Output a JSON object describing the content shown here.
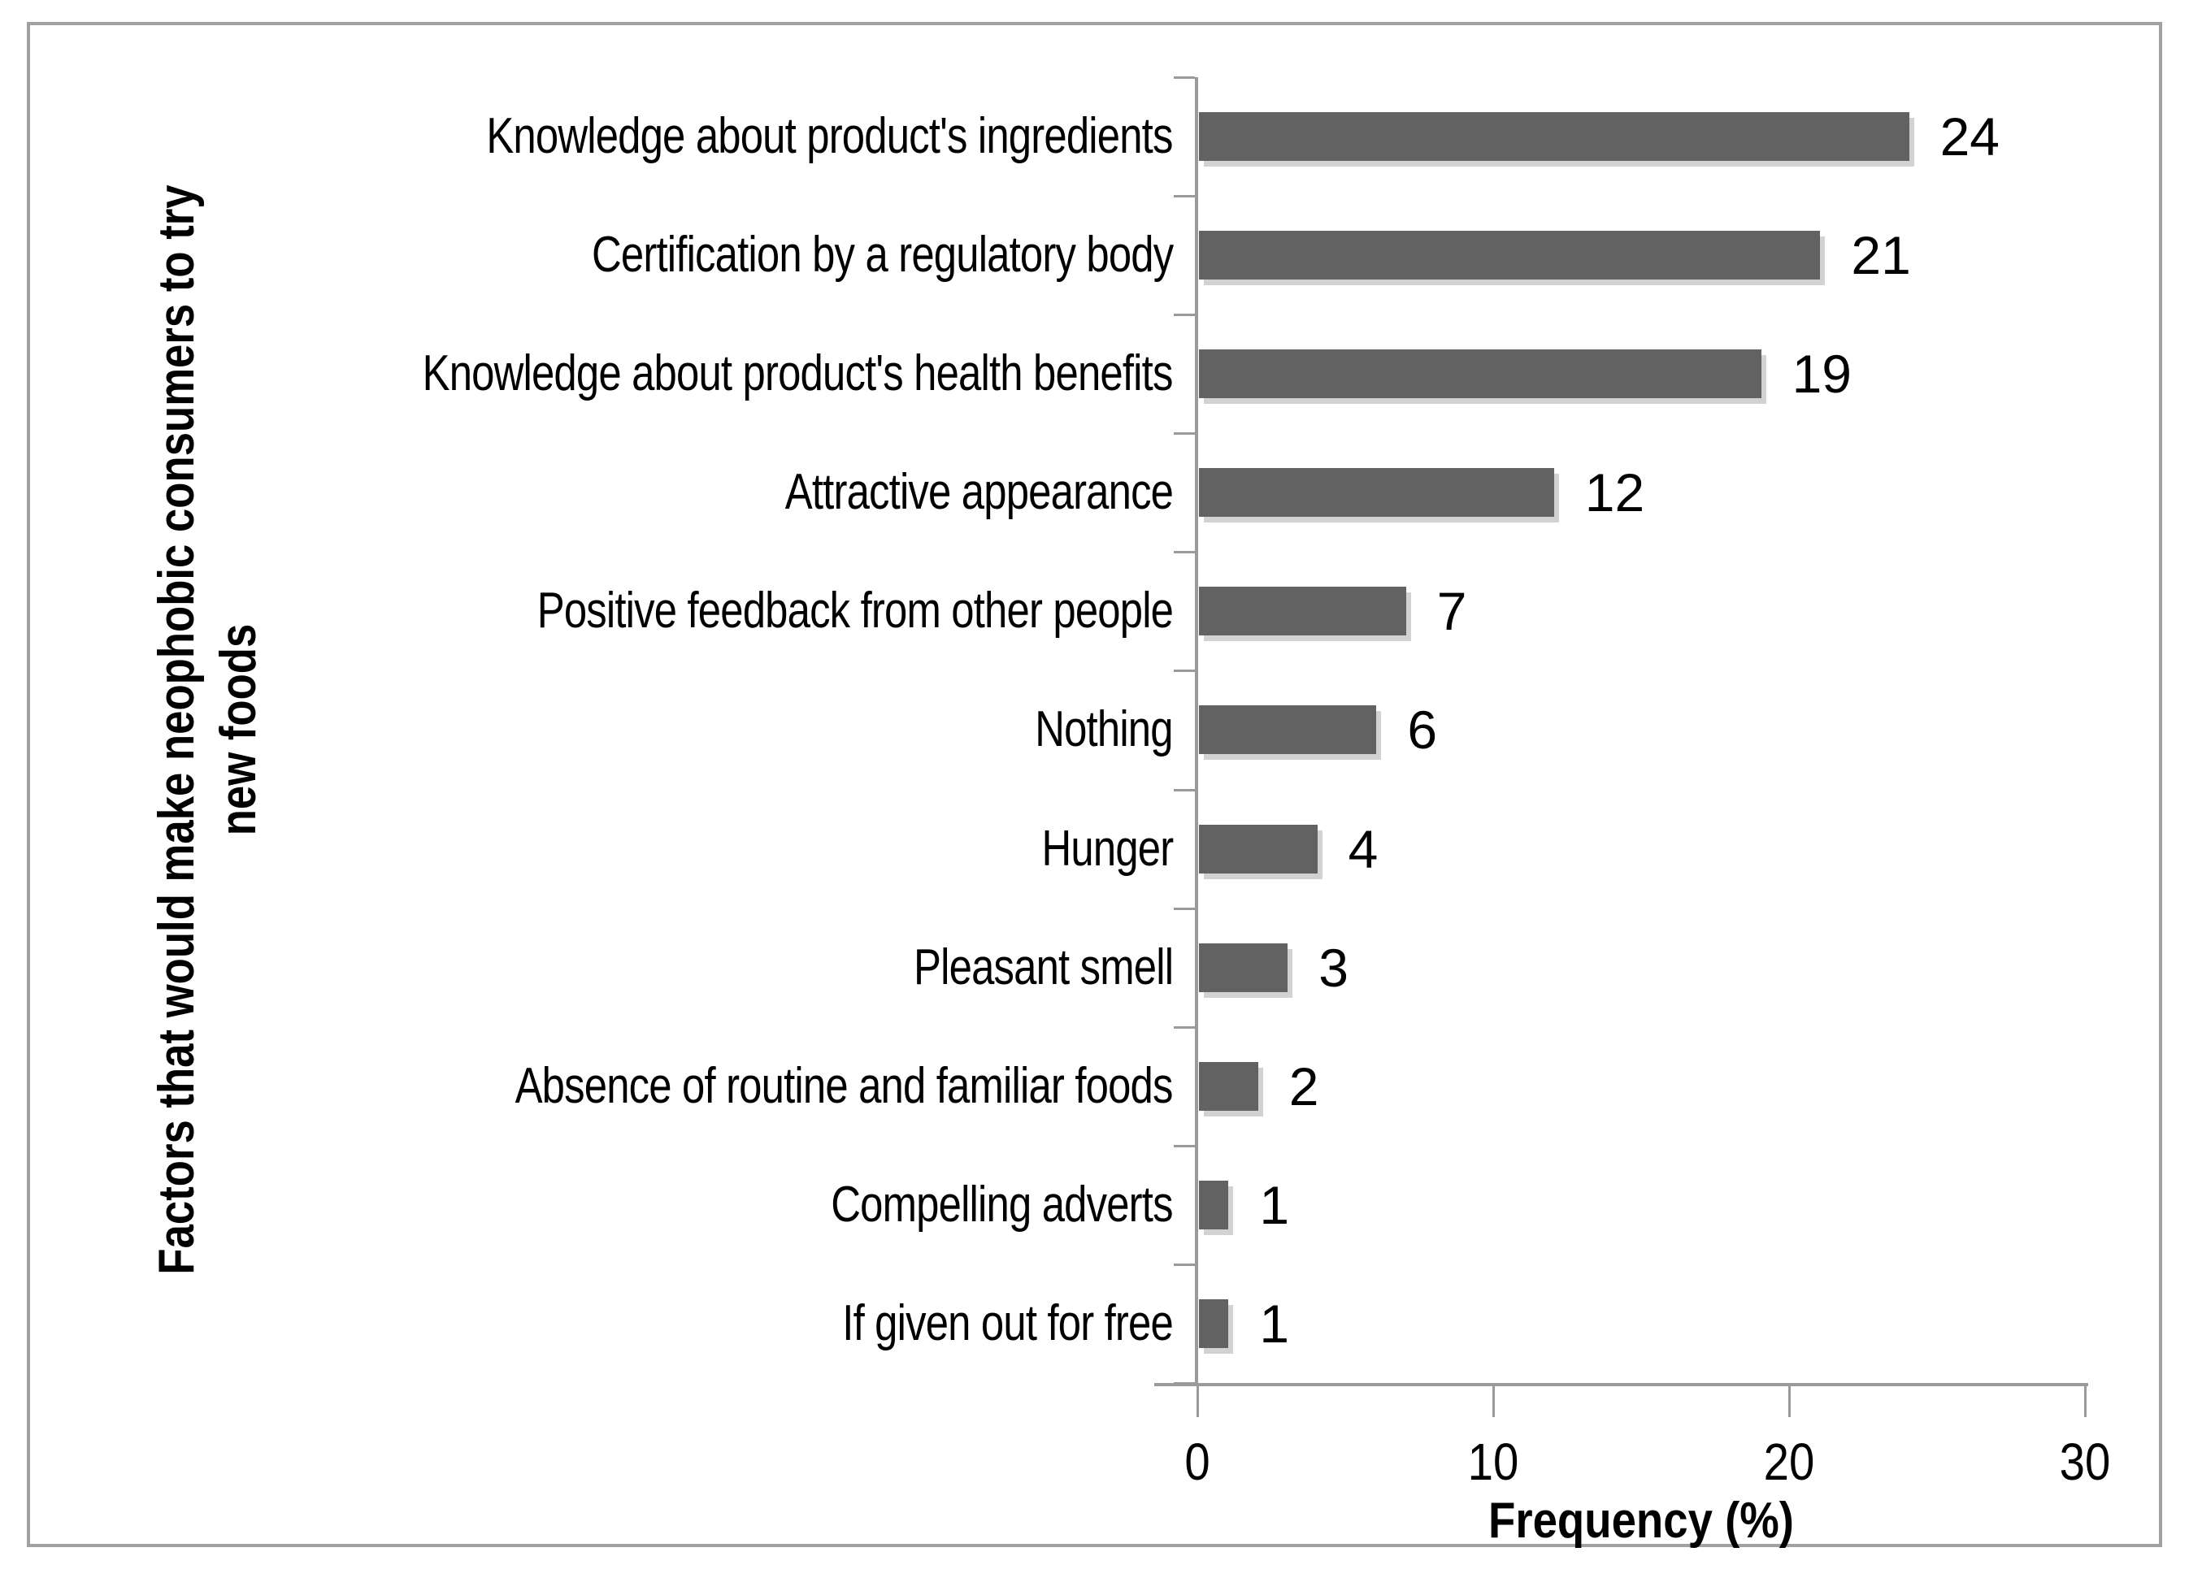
{
  "chart_data": {
    "type": "bar",
    "orientation": "horizontal",
    "title": "",
    "categories": [
      "Knowledge about product's ingredients",
      "Certification by a regulatory body",
      "Knowledge about product's health benefits",
      "Attractive appearance",
      "Positive feedback from other people",
      "Nothing",
      "Hunger",
      "Pleasant smell",
      "Absence of routine and familiar foods",
      "Compelling adverts",
      "If given out for free"
    ],
    "values": [
      24,
      21,
      19,
      12,
      7,
      6,
      4,
      3,
      2,
      1,
      1
    ],
    "value_labels": [
      "24",
      "21",
      "19",
      "12",
      "7",
      "6",
      "4",
      "3",
      "2",
      "1",
      "1"
    ],
    "xlabel": "Frequency (%)",
    "ylabel": "Factors that would make neophobic consumers to try new foods",
    "ylabel_lines": [
      "Factors that would make neophobic consumers to try",
      "new foods"
    ],
    "xlim": [
      0,
      30
    ],
    "xticks": [
      "0",
      "10",
      "20",
      "30"
    ],
    "grid": false,
    "legend": "none",
    "colors": {
      "bar": "#626262",
      "bar_shadow": "#d2d2d2",
      "axis": "#9a9a9a",
      "frame": "#a1a1a1",
      "text": "#000000",
      "background": "#ffffff"
    }
  }
}
